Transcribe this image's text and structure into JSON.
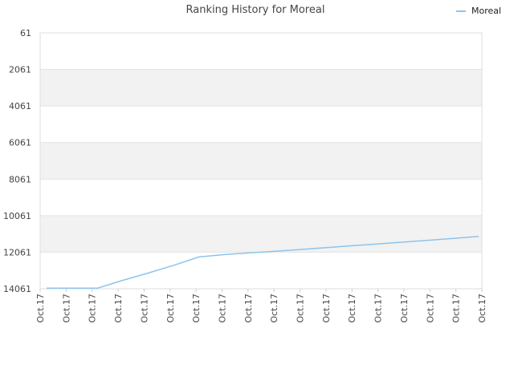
{
  "chart_data": {
    "type": "line",
    "title": "Ranking History for Moreal",
    "xlabel": "",
    "ylabel": "",
    "y_inverted": true,
    "ylim": [
      61,
      14061
    ],
    "y_ticks": [
      "61",
      "2061",
      "4061",
      "6061",
      "8061",
      "10061",
      "12061",
      "14061"
    ],
    "x_ticks": [
      "Oct.17",
      "Oct.17",
      "Oct.17",
      "Oct.17",
      "Oct.17",
      "Oct.17",
      "Oct.17",
      "Oct.17",
      "Oct.17",
      "Oct.17",
      "Oct.17",
      "Oct.17",
      "Oct.17",
      "Oct.17",
      "Oct.17",
      "Oct.17",
      "Oct.17",
      "Oct.17"
    ],
    "grid": "horizontal alternating bands",
    "legend_position": "top-right",
    "series": [
      {
        "name": "Moreal",
        "color": "#8cc4ee",
        "x": [
          0,
          1,
          2,
          3,
          4,
          5,
          6,
          7,
          8,
          9,
          10,
          11,
          12,
          13,
          14,
          15,
          16,
          17
        ],
        "y": [
          14030,
          14030,
          14030,
          13600,
          13200,
          12780,
          12320,
          12190,
          12100,
          12010,
          11910,
          11810,
          11710,
          11610,
          11510,
          11410,
          11310,
          11200
        ]
      }
    ]
  }
}
